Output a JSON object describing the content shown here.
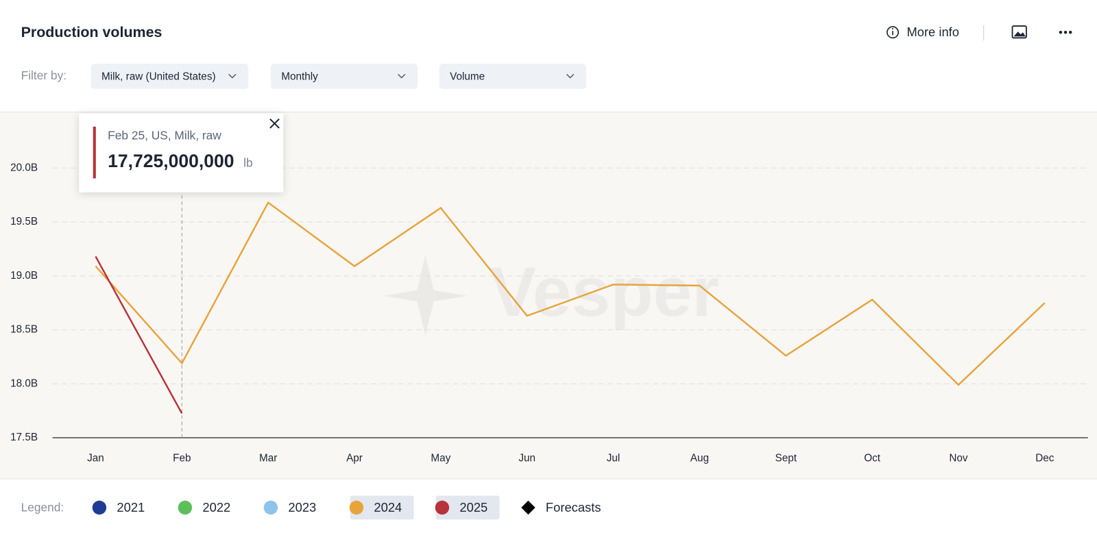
{
  "header": {
    "title": "Production volumes",
    "more_info": "More info"
  },
  "filters": {
    "label": "Filter by:",
    "options": [
      "Milk, raw (United States)",
      "Monthly",
      "Volume"
    ]
  },
  "chart_data": {
    "type": "line",
    "categories": [
      "Jan",
      "Feb",
      "Mar",
      "Apr",
      "May",
      "Jun",
      "Jul",
      "Aug",
      "Sept",
      "Oct",
      "Nov",
      "Dec"
    ],
    "series": [
      {
        "name": "2021",
        "color": "#1f3c93",
        "highlighted": false,
        "values": [
          null,
          null,
          null,
          null,
          null,
          null,
          null,
          null,
          null,
          null,
          null,
          null
        ]
      },
      {
        "name": "2022",
        "color": "#5cbf5c",
        "highlighted": false,
        "values": [
          null,
          null,
          null,
          null,
          null,
          null,
          null,
          null,
          null,
          null,
          null,
          null
        ]
      },
      {
        "name": "2023",
        "color": "#8ec4ea",
        "highlighted": false,
        "values": [
          null,
          null,
          null,
          null,
          null,
          null,
          null,
          null,
          null,
          null,
          null,
          null
        ]
      },
      {
        "name": "2024",
        "color": "#e8a33a",
        "highlighted": true,
        "values": [
          19090000000,
          18190000000,
          19680000000,
          19090000000,
          19630000000,
          18630000000,
          18920000000,
          18910000000,
          18260000000,
          18780000000,
          17990000000,
          18750000000
        ]
      },
      {
        "name": "2025",
        "color": "#b8323a",
        "highlighted": true,
        "values": [
          19180000000,
          17725000000,
          null,
          null,
          null,
          null,
          null,
          null,
          null,
          null,
          null,
          null
        ]
      }
    ],
    "ylim": [
      17500000000,
      20500000000
    ],
    "yticks": [
      {
        "value": 17500000000,
        "label": "17.5B"
      },
      {
        "value": 18000000000,
        "label": "18.0B"
      },
      {
        "value": 18500000000,
        "label": "18.5B"
      },
      {
        "value": 19000000000,
        "label": "19.0B"
      },
      {
        "value": 19500000000,
        "label": "19.5B"
      },
      {
        "value": 20000000000,
        "label": "20.0B"
      }
    ],
    "grid": true,
    "watermark": "Vesper"
  },
  "tooltip": {
    "title": "Feb 25, US, Milk, raw",
    "value": 17725000000,
    "value_label": "17,725,000,000",
    "unit": "lb"
  },
  "legend": {
    "label": "Legend:",
    "forecasts": "Forecasts"
  }
}
